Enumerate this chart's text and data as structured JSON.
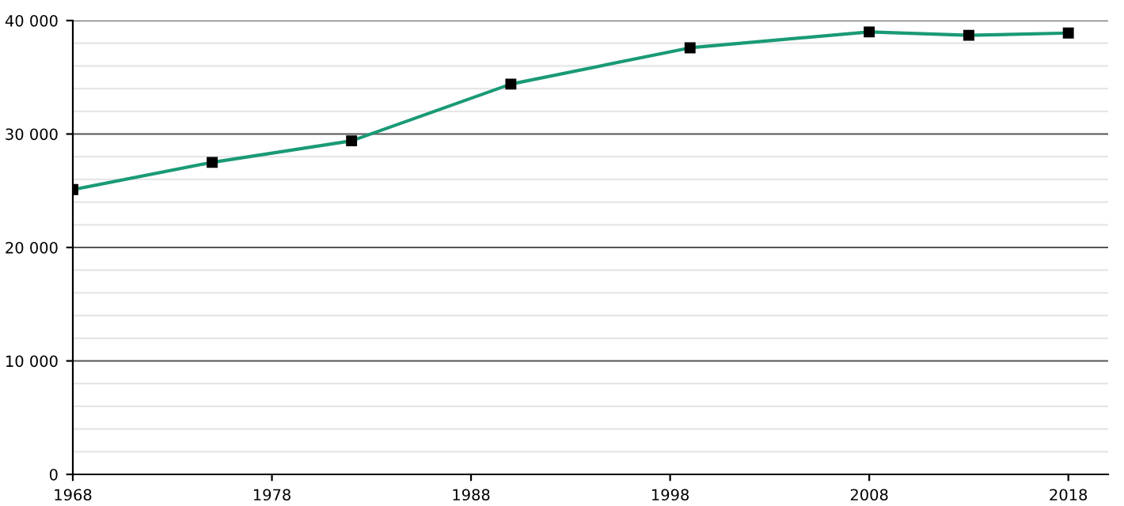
{
  "chart_data": {
    "type": "line",
    "x": [
      1968,
      1975,
      1982,
      1990,
      1999,
      2008,
      2013,
      2018
    ],
    "series": [
      {
        "color": "#1a9a77",
        "values": [
          25100,
          27500,
          29400,
          34400,
          37600,
          39000,
          38700,
          38900
        ]
      }
    ],
    "marker": "square",
    "line_style": "solid",
    "grid": "y",
    "xlim": [
      1968,
      2020
    ],
    "xticks": [
      1968,
      1978,
      1988,
      1998,
      2008,
      2018
    ],
    "ylim": [
      0,
      40000
    ],
    "yticks": [
      {
        "value": 0,
        "label": "0"
      },
      {
        "value": 2000,
        "label": null
      },
      {
        "value": 4000,
        "label": null
      },
      {
        "value": 6000,
        "label": null
      },
      {
        "value": 8000,
        "label": null
      },
      {
        "value": 10000,
        "label": "10 000"
      },
      {
        "value": 12000,
        "label": null
      },
      {
        "value": 14000,
        "label": null
      },
      {
        "value": 16000,
        "label": null
      },
      {
        "value": 18000,
        "label": null
      },
      {
        "value": 20000,
        "label": "20 000"
      },
      {
        "value": 22000,
        "label": null
      },
      {
        "value": 24000,
        "label": null
      },
      {
        "value": 26000,
        "label": null
      },
      {
        "value": 28000,
        "label": null
      },
      {
        "value": 30000,
        "label": "30 000"
      },
      {
        "value": 32000,
        "label": null
      },
      {
        "value": 34000,
        "label": null
      },
      {
        "value": 36000,
        "label": null
      },
      {
        "value": 38000,
        "label": null
      },
      {
        "value": 40000,
        "label": "40 000"
      }
    ]
  }
}
